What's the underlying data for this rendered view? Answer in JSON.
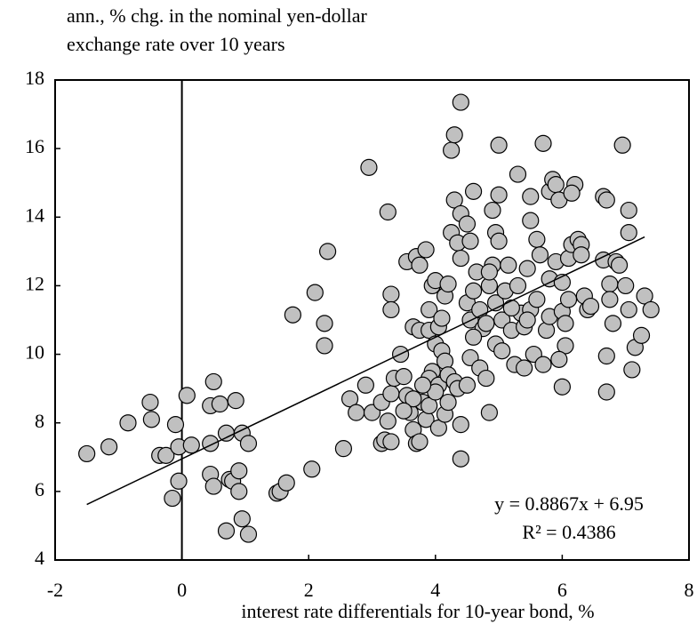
{
  "chart_data": {
    "type": "scatter",
    "title_lines": [
      "ann., % chg. in the nominal yen-dollar",
      "exchange rate over 10 years"
    ],
    "x_label": "interest rate differentials for 10-year bond, %",
    "annotations": [
      "y = 0.8867x + 6.95",
      "R² = 0.4386"
    ],
    "trendline": {
      "slope": 0.8867,
      "intercept": 6.95,
      "x_start": -1.5,
      "x_end": 7.3
    },
    "zero_line": true,
    "color": "#c0c0c0",
    "xlim": [
      -2,
      8
    ],
    "xticks": [
      -2,
      0,
      2,
      4,
      6,
      8
    ],
    "ylim": [
      4,
      18
    ],
    "yticks": [
      4,
      6,
      8,
      10,
      12,
      14,
      16,
      18
    ],
    "x": [
      -1.5,
      -1.15,
      -0.85,
      -0.5,
      -0.48,
      -0.35,
      -0.25,
      -0.1,
      -0.05,
      0.08,
      -0.15,
      -0.05,
      0.15,
      0.45,
      0.45,
      0.5,
      0.45,
      0.5,
      0.6,
      0.7,
      0.75,
      0.8,
      0.85,
      0.9,
      0.9,
      0.95,
      1.05,
      0.7,
      0.95,
      1.05,
      1.5,
      1.55,
      1.65,
      2.05,
      2.55,
      1.75,
      2.1,
      2.25,
      2.25,
      2.3,
      2.95,
      3.25,
      3.3,
      3.3,
      2.65,
      2.75,
      2.9,
      3.0,
      3.15,
      3.15,
      3.2,
      3.25,
      3.3,
      3.35,
      3.3,
      3.55,
      3.7,
      3.75,
      3.85,
      3.9,
      3.95,
      4.0,
      3.65,
      3.75,
      3.9,
      4.0,
      4.05,
      4.1,
      4.15,
      3.95,
      3.9,
      4.05,
      4.2,
      4.3,
      3.5,
      3.55,
      3.6,
      3.65,
      3.7,
      3.75,
      3.8,
      3.85,
      3.9,
      4.0,
      4.05,
      4.15,
      4.2,
      4.35,
      4.4,
      4.4,
      3.65,
      3.5,
      3.45,
      3.8,
      4.1,
      4.15,
      4.25,
      4.2,
      4.35,
      4.4,
      4.3,
      4.4,
      4.5,
      4.25,
      4.3,
      4.4,
      4.55,
      4.6,
      4.5,
      4.55,
      4.6,
      4.65,
      4.7,
      4.75,
      4.6,
      4.55,
      4.7,
      4.5,
      4.8,
      4.85,
      4.8,
      4.85,
      4.9,
      4.95,
      4.85,
      4.9,
      4.95,
      5.0,
      5.0,
      5.0,
      4.95,
      5.05,
      5.1,
      5.15,
      5.05,
      5.2,
      5.25,
      5.3,
      5.3,
      5.35,
      5.4,
      5.45,
      5.5,
      5.5,
      5.5,
      5.55,
      5.6,
      5.6,
      5.65,
      5.7,
      5.7,
      5.75,
      5.8,
      5.8,
      5.8,
      5.85,
      5.9,
      5.95,
      5.9,
      6.0,
      6.0,
      6.05,
      6.0,
      6.05,
      6.1,
      6.1,
      6.15,
      6.2,
      6.15,
      6.25,
      6.3,
      6.3,
      6.35,
      6.4,
      6.45,
      6.65,
      6.65,
      6.7,
      6.75,
      6.75,
      6.8,
      6.85,
      6.9,
      6.7,
      6.7,
      6.95,
      7.05,
      7.05,
      7.0,
      7.05,
      7.1,
      7.15,
      7.25,
      7.3,
      7.4,
      5.95,
      5.4,
      5.2,
      5.45
    ],
    "y": [
      7.1,
      7.3,
      8.0,
      8.6,
      8.1,
      7.05,
      7.05,
      7.95,
      7.3,
      8.8,
      5.8,
      6.3,
      7.35,
      7.4,
      8.5,
      9.2,
      6.5,
      6.15,
      8.55,
      7.7,
      6.35,
      6.3,
      8.65,
      6.0,
      6.6,
      7.7,
      7.4,
      4.85,
      5.2,
      4.75,
      5.95,
      6.0,
      6.25,
      6.65,
      7.25,
      11.15,
      11.8,
      10.25,
      10.9,
      13.0,
      15.45,
      14.15,
      11.75,
      11.3,
      8.7,
      8.3,
      9.1,
      8.3,
      8.6,
      7.4,
      7.5,
      8.05,
      8.85,
      9.3,
      7.45,
      12.7,
      12.85,
      12.6,
      13.05,
      11.3,
      12.0,
      12.15,
      10.8,
      10.7,
      10.7,
      10.3,
      10.8,
      10.1,
      9.8,
      9.5,
      9.3,
      9.1,
      9.4,
      9.2,
      9.35,
      8.8,
      8.3,
      7.8,
      7.4,
      7.45,
      8.6,
      8.1,
      8.5,
      8.9,
      7.85,
      8.25,
      8.6,
      9.0,
      7.95,
      6.95,
      8.7,
      8.35,
      10.0,
      9.1,
      11.05,
      11.7,
      13.55,
      12.05,
      13.25,
      12.8,
      14.5,
      14.1,
      13.8,
      15.95,
      16.4,
      17.35,
      13.3,
      14.75,
      11.5,
      11.0,
      11.85,
      12.4,
      11.3,
      10.75,
      10.5,
      9.9,
      9.6,
      9.1,
      9.3,
      8.3,
      10.9,
      12.0,
      12.6,
      11.5,
      12.4,
      14.2,
      13.55,
      13.3,
      14.65,
      16.1,
      10.3,
      11.0,
      11.85,
      12.6,
      10.1,
      10.7,
      9.7,
      12.0,
      15.25,
      11.2,
      10.8,
      12.5,
      11.3,
      13.9,
      14.6,
      10.0,
      11.6,
      13.35,
      12.9,
      16.15,
      9.7,
      10.7,
      11.1,
      12.2,
      14.75,
      15.1,
      14.95,
      14.5,
      12.7,
      12.1,
      11.25,
      10.25,
      9.05,
      10.9,
      11.6,
      12.8,
      13.2,
      14.95,
      14.7,
      13.35,
      13.2,
      12.9,
      11.7,
      11.3,
      11.4,
      12.75,
      14.6,
      14.5,
      12.05,
      11.6,
      10.9,
      12.7,
      12.6,
      9.95,
      8.9,
      16.1,
      14.2,
      13.55,
      12.0,
      11.3,
      9.55,
      10.2,
      10.55,
      11.7,
      11.3,
      9.85,
      9.6,
      11.35,
      11.0
    ]
  }
}
